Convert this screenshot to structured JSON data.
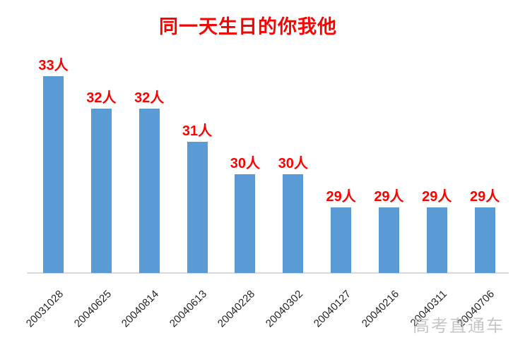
{
  "chart_data": {
    "type": "bar",
    "title": "同一天生日的你我他",
    "categories": [
      "20031028",
      "20040625",
      "20040814",
      "20040613",
      "20040228",
      "20040302",
      "20040127",
      "20040216",
      "20040311",
      "20040706"
    ],
    "values": [
      33,
      32,
      32,
      31,
      30,
      30,
      29,
      29,
      29,
      29
    ],
    "data_labels": [
      "33人",
      "32人",
      "32人",
      "31人",
      "30人",
      "30人",
      "29人",
      "29人",
      "29人",
      "29人"
    ],
    "unit_suffix": "人",
    "xlabel": "",
    "ylabel": "",
    "ylim": [
      27,
      34
    ],
    "grid": false,
    "legend": false,
    "bar_color": "#5B9BD5",
    "title_color": "#FF0000",
    "data_label_color": "#FF0000",
    "tick_label_color": "#262626",
    "axis_line_color": "#D9D9D9"
  },
  "watermark": {
    "text": "高考直通车",
    "color": "#BDBDBD"
  }
}
